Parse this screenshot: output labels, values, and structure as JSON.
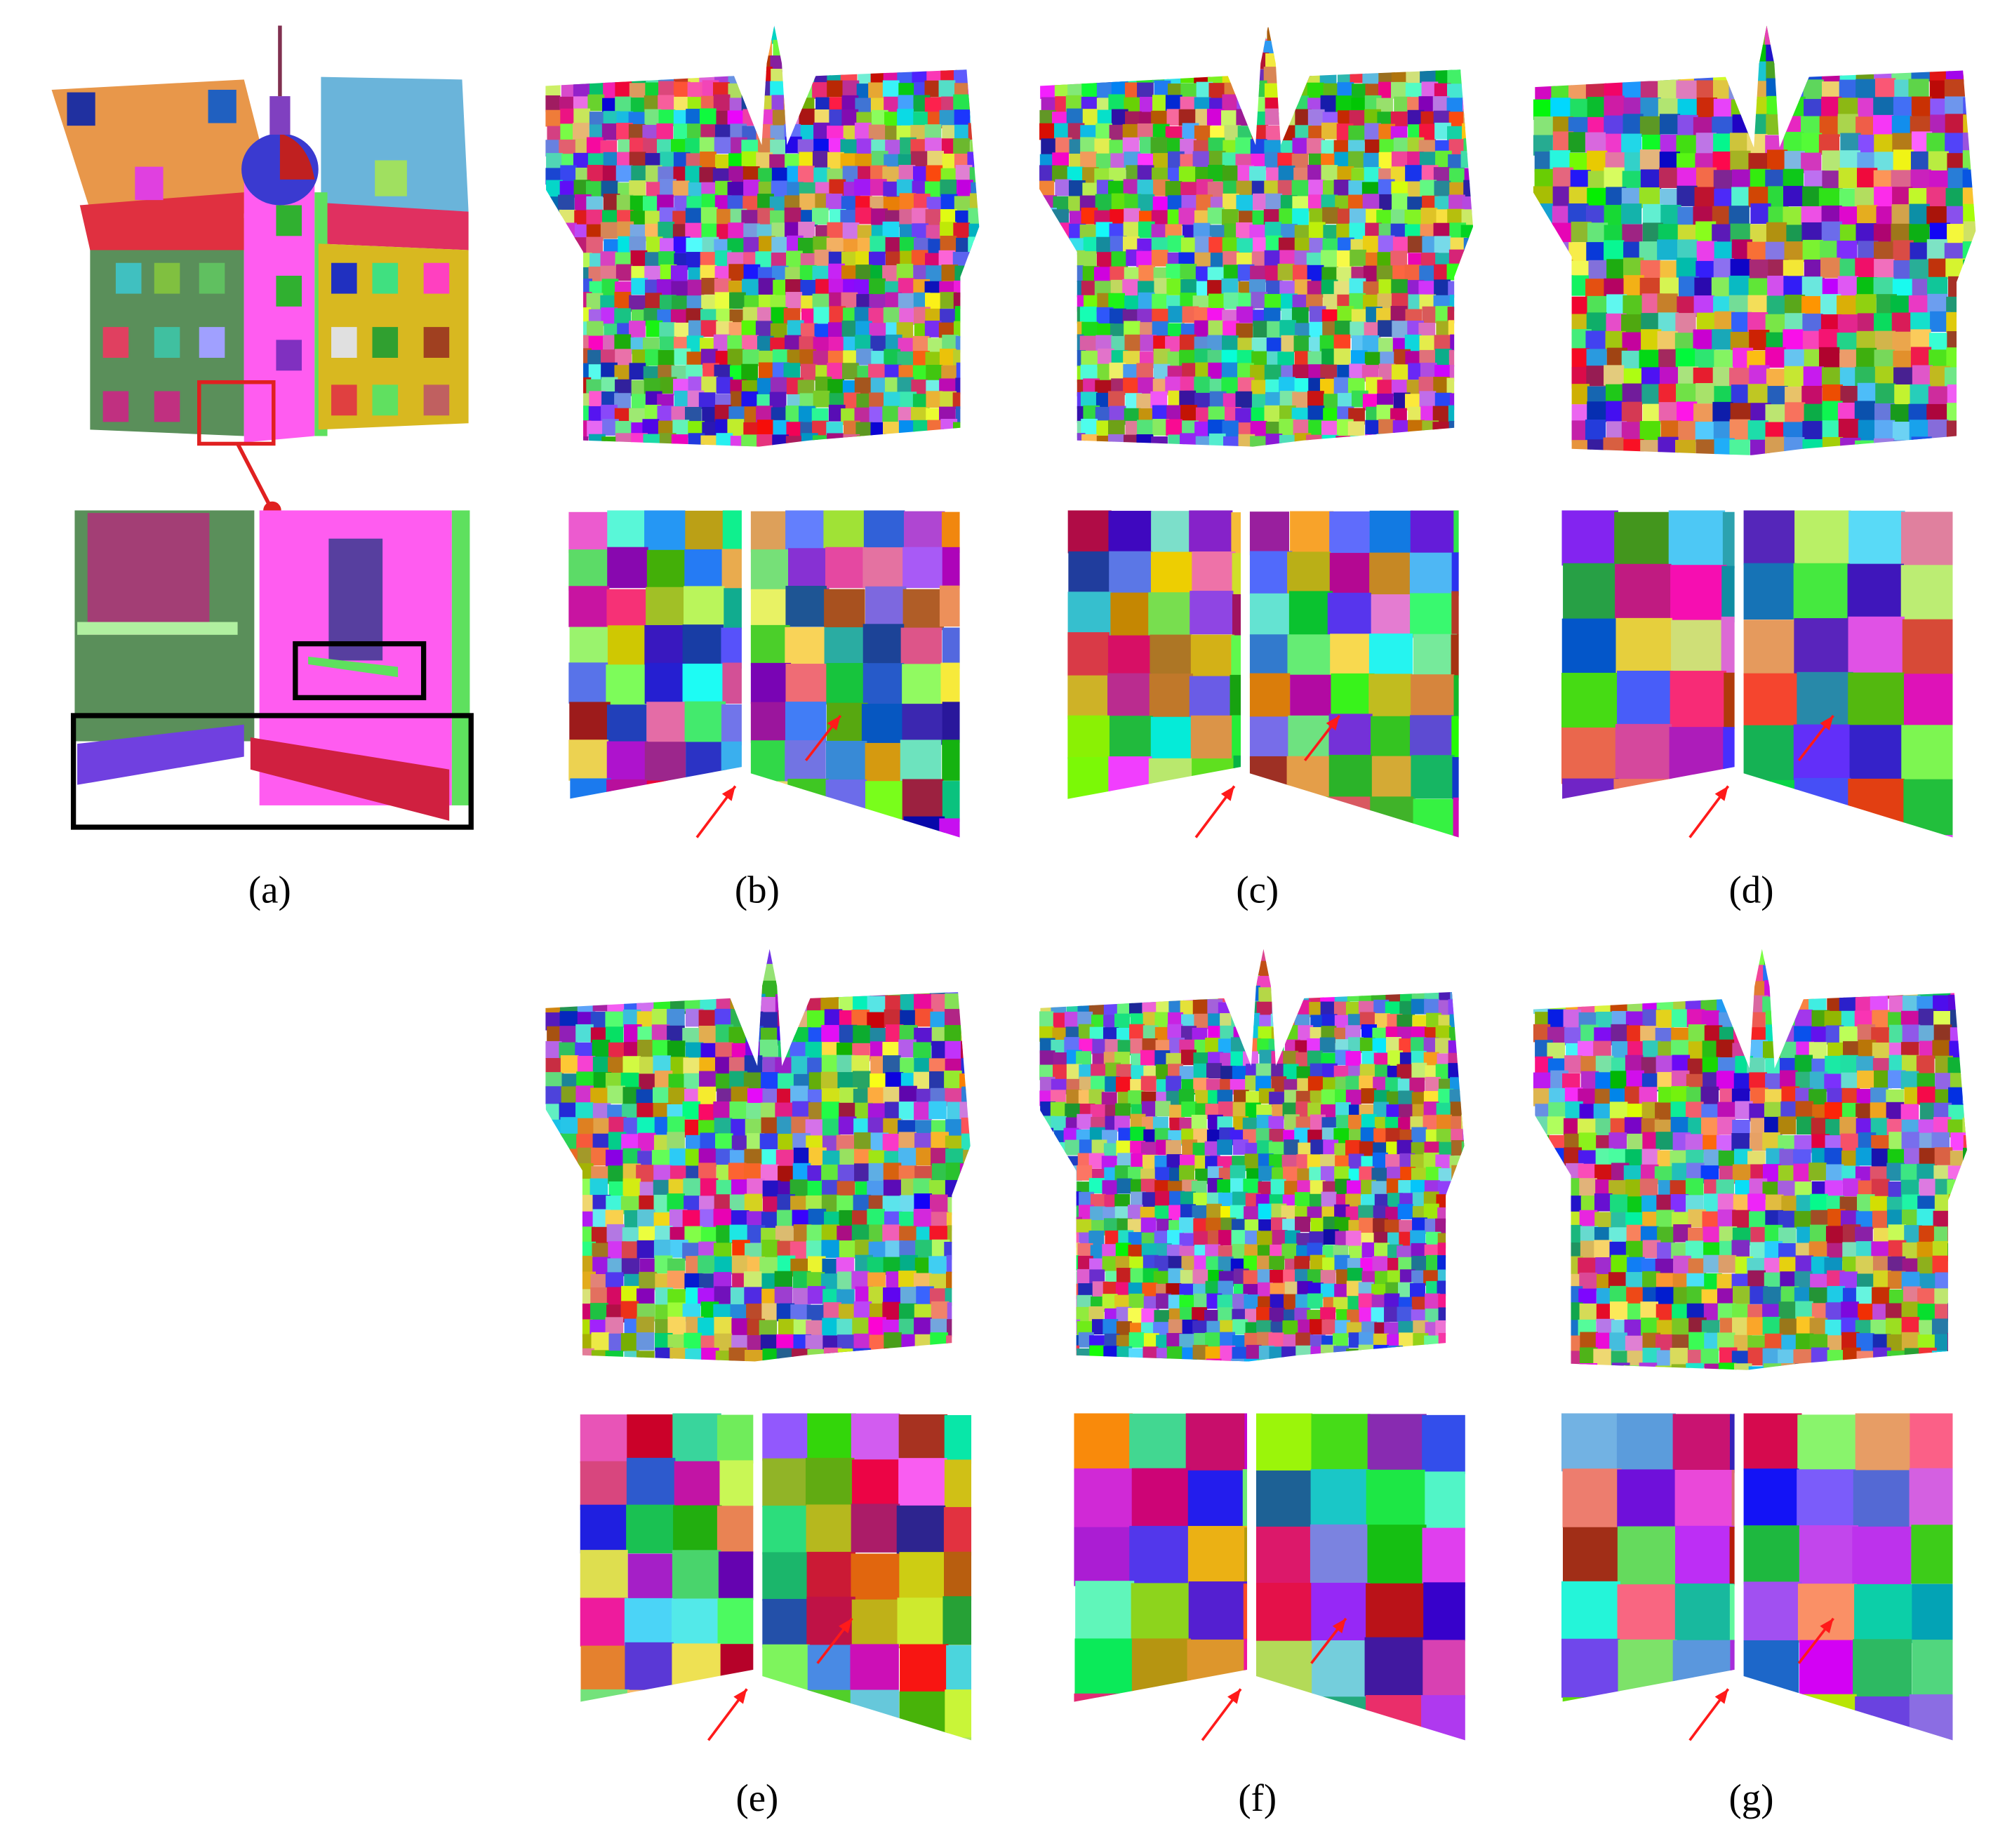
{
  "figure": {
    "panels": [
      {
        "label": "(a)"
      },
      {
        "label": "(b)"
      },
      {
        "label": "(c)"
      },
      {
        "label": "(d)"
      },
      {
        "label": "(e)"
      },
      {
        "label": "(f)"
      },
      {
        "label": "(g)"
      }
    ]
  }
}
